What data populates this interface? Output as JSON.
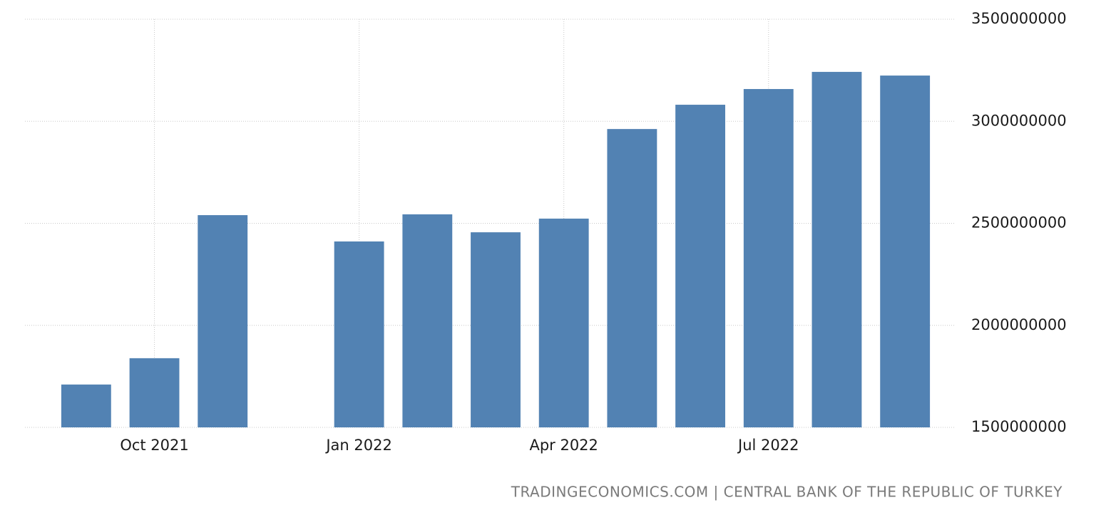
{
  "chart_data": {
    "type": "bar",
    "categories": [
      null,
      "Oct 2021",
      null,
      null,
      "Jan 2022",
      null,
      null,
      "Apr 2022",
      null,
      null,
      "Jul 2022",
      null,
      null
    ],
    "values": [
      1710000000,
      1839000000,
      2540000000,
      null,
      2411000000,
      2544000000,
      2456000000,
      2523000000,
      2962000000,
      3081000000,
      3158000000,
      3242000000,
      3224000000
    ],
    "color": "#5282b3",
    "ylim": [
      1500000000,
      3500000000
    ],
    "yticks": [
      1500000000,
      2000000000,
      2500000000,
      3000000000,
      3500000000
    ],
    "grid": true,
    "source": "TRADINGECONOMICS.COM | CENTRAL BANK OF THE REPUBLIC OF TURKEY"
  }
}
